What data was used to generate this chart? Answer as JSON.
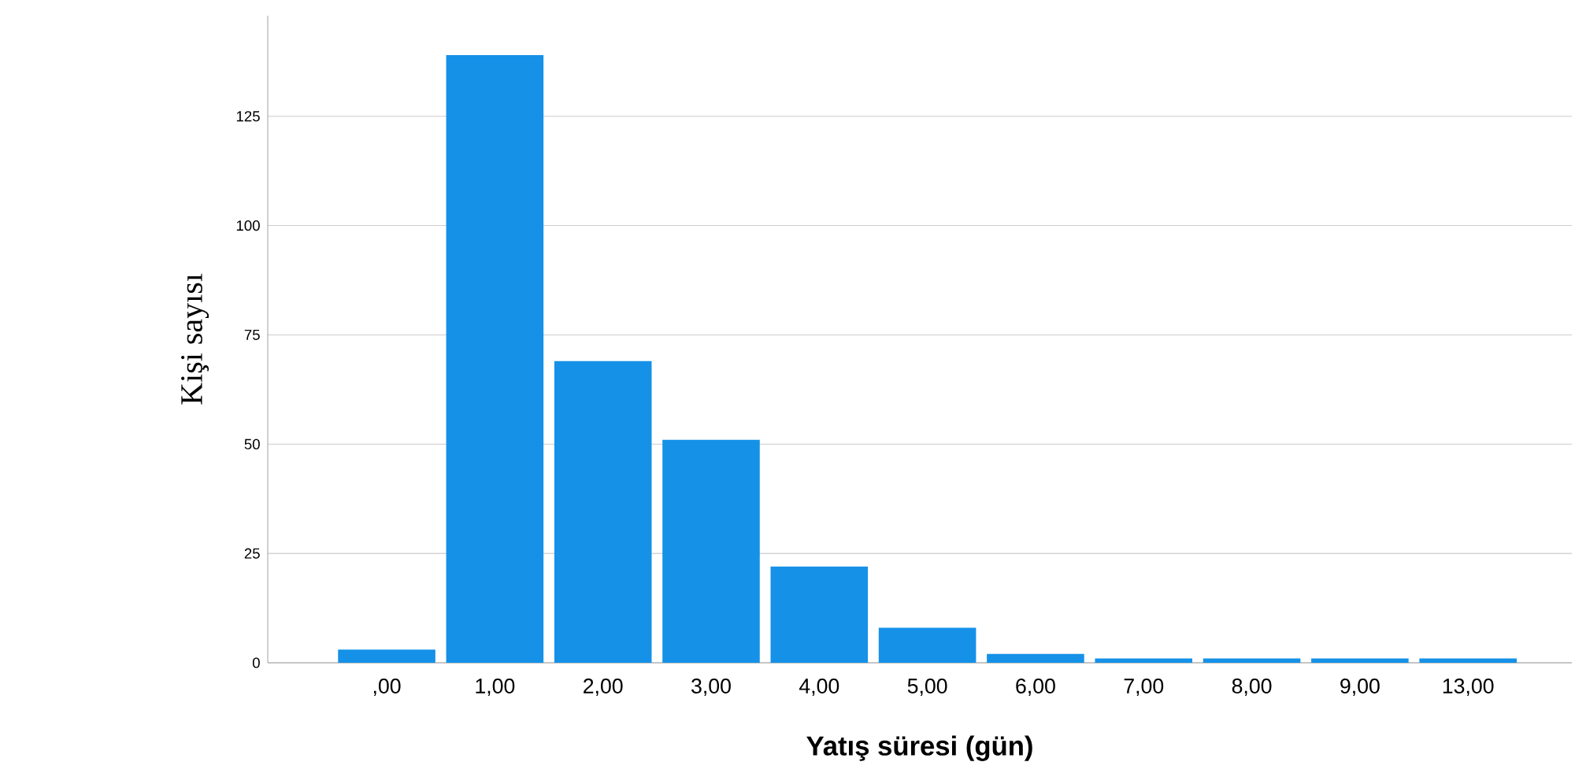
{
  "chart_data": {
    "type": "bar",
    "xlabel": "Yatış süresi (gün)",
    "ylabel": "Kişi sayısı",
    "categories": [
      ",00",
      "1,00",
      "2,00",
      "3,00",
      "4,00",
      "5,00",
      "6,00",
      "7,00",
      "8,00",
      "9,00",
      "13,00"
    ],
    "values": [
      3,
      139,
      69,
      51,
      22,
      8,
      2,
      1,
      1,
      1,
      1
    ],
    "color": "#1591e8",
    "ylim": [
      0,
      148
    ],
    "yticks": [
      0,
      25,
      50,
      75,
      100,
      125
    ],
    "grid": "y"
  }
}
